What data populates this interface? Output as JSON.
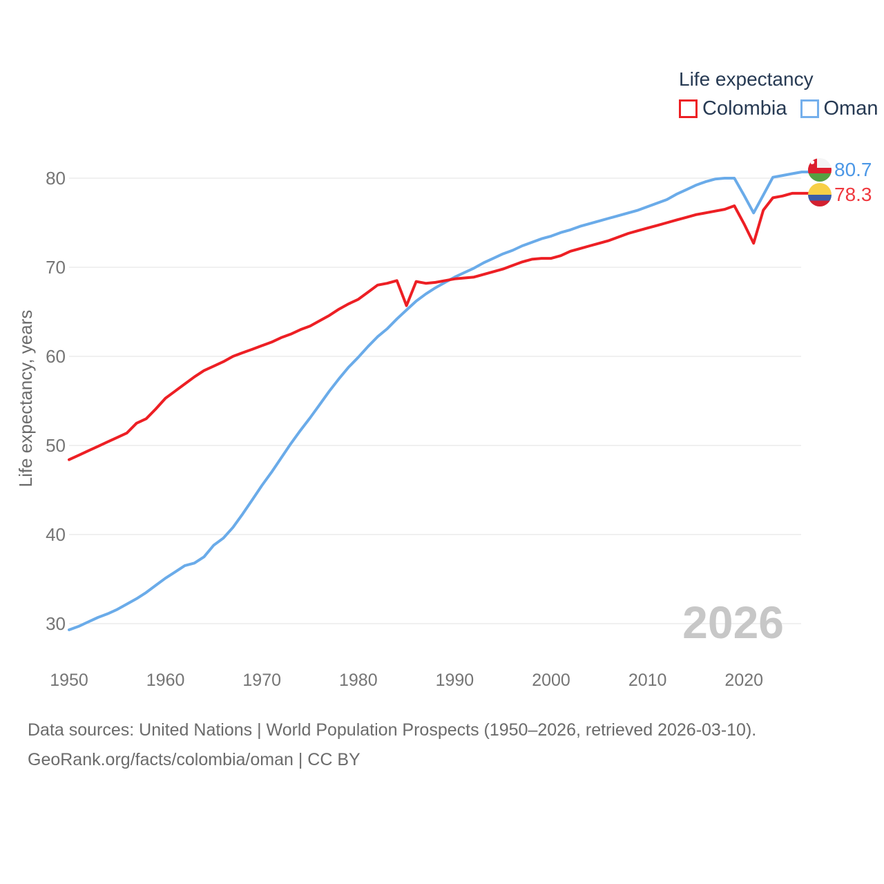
{
  "legend": {
    "title": "Life expectancy",
    "items": [
      {
        "label": "Colombia",
        "color": "#ed1f24"
      },
      {
        "label": "Oman",
        "color": "#74afec"
      }
    ]
  },
  "end_labels": {
    "oman": {
      "value": "80.7",
      "flag": "oman-flag"
    },
    "colombia": {
      "value": "78.3",
      "flag": "colombia-flag"
    }
  },
  "watermark": "2026",
  "footer": {
    "line1": "Data sources: United Nations | World Population Prospects (1950–2026, retrieved 2026-03-10).",
    "line2": "GeoRank.org/facts/colombia/oman | CC BY"
  },
  "chart_data": {
    "type": "line",
    "title": "Life expectancy",
    "xlabel": "",
    "ylabel": "Life expectancy, years",
    "x_start": 1950,
    "x_end": 2026,
    "xticks": [
      1950,
      1960,
      1970,
      1980,
      1990,
      2000,
      2010,
      2020
    ],
    "yticks": [
      30,
      40,
      50,
      60,
      70,
      80
    ],
    "ylim": [
      26,
      84
    ],
    "grid": true,
    "legend_position": "top-right",
    "series": [
      {
        "name": "Colombia",
        "color": "#ed1f24",
        "end_label": "78.3",
        "values": [
          48.4,
          48.9,
          49.4,
          49.9,
          50.4,
          50.9,
          51.4,
          52.5,
          53.0,
          54.1,
          55.3,
          56.1,
          56.9,
          57.7,
          58.4,
          58.9,
          59.4,
          60.0,
          60.4,
          60.8,
          61.2,
          61.6,
          62.1,
          62.5,
          63.0,
          63.4,
          64.0,
          64.6,
          65.3,
          65.9,
          66.4,
          67.2,
          68.0,
          68.2,
          68.5,
          65.7,
          68.4,
          68.2,
          68.3,
          68.5,
          68.7,
          68.8,
          68.9,
          69.2,
          69.5,
          69.8,
          70.2,
          70.6,
          70.9,
          71.0,
          71.0,
          71.3,
          71.8,
          72.1,
          72.4,
          72.7,
          73.0,
          73.4,
          73.8,
          74.1,
          74.4,
          74.7,
          75.0,
          75.3,
          75.6,
          75.9,
          76.1,
          76.3,
          76.5,
          76.9,
          74.9,
          72.7,
          76.4,
          77.8,
          78.0,
          78.3,
          78.3
        ]
      },
      {
        "name": "Oman",
        "color": "#6aabe9",
        "end_label": "80.7",
        "values": [
          29.3,
          29.7,
          30.2,
          30.7,
          31.1,
          31.6,
          32.2,
          32.8,
          33.5,
          34.3,
          35.1,
          35.8,
          36.5,
          36.8,
          37.5,
          38.8,
          39.6,
          40.8,
          42.3,
          43.9,
          45.5,
          47.0,
          48.6,
          50.2,
          51.7,
          53.1,
          54.6,
          56.1,
          57.5,
          58.8,
          59.9,
          61.1,
          62.2,
          63.1,
          64.2,
          65.2,
          66.2,
          67.0,
          67.7,
          68.3,
          68.9,
          69.4,
          69.9,
          70.5,
          71.0,
          71.5,
          71.9,
          72.4,
          72.8,
          73.2,
          73.5,
          73.9,
          74.2,
          74.6,
          74.9,
          75.2,
          75.5,
          75.8,
          76.1,
          76.4,
          76.8,
          77.2,
          77.6,
          78.2,
          78.7,
          79.2,
          79.6,
          79.9,
          80.0,
          80.0,
          78.1,
          76.1,
          78.1,
          80.1,
          80.3,
          80.5,
          80.7
        ]
      }
    ]
  },
  "colors": {
    "grid": "#e8e8e8",
    "tick_text": "#757575",
    "axis_title": "#6b6b6b",
    "watermark": "#c7c7c7",
    "legend_text": "#273a53"
  }
}
